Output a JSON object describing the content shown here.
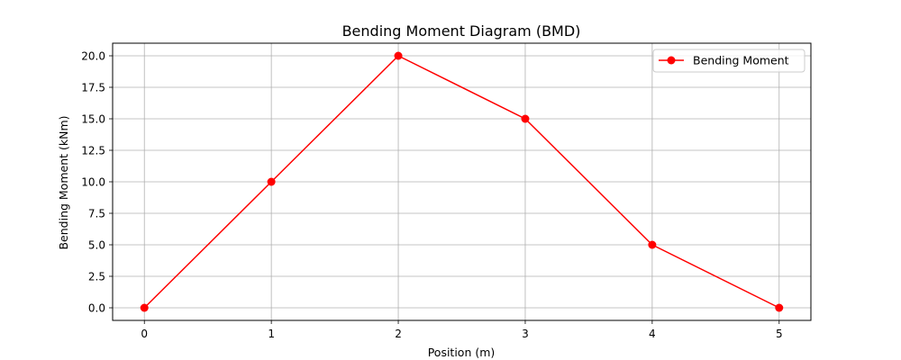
{
  "chart_data": {
    "type": "line",
    "title": "Bending Moment Diagram (BMD)",
    "xlabel": "Position (m)",
    "ylabel": "Bending Moment (kNm)",
    "xlim": [
      -0.25,
      5.25
    ],
    "ylim": [
      -1.0,
      21.0
    ],
    "xticks": [
      0,
      1,
      2,
      3,
      4,
      5
    ],
    "xtick_labels": [
      "0",
      "1",
      "2",
      "3",
      "4",
      "5"
    ],
    "yticks": [
      0.0,
      2.5,
      5.0,
      7.5,
      10.0,
      12.5,
      15.0,
      17.5,
      20.0
    ],
    "ytick_labels": [
      "0.0",
      "2.5",
      "5.0",
      "7.5",
      "10.0",
      "12.5",
      "15.0",
      "17.5",
      "20.0"
    ],
    "grid": true,
    "legend_position": "top-right",
    "series": [
      {
        "name": "Bending Moment",
        "color": "#ff0000",
        "marker": "circle",
        "x": [
          0,
          1,
          2,
          3,
          4,
          5
        ],
        "y": [
          0,
          10,
          20,
          15,
          5,
          0
        ]
      }
    ]
  }
}
